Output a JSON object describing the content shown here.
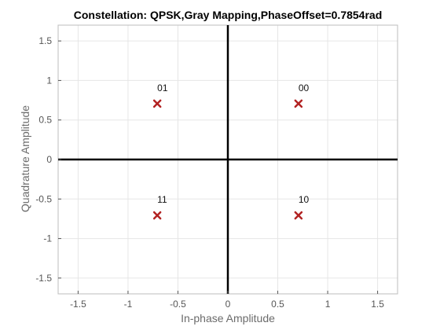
{
  "chart_data": {
    "type": "scatter",
    "title": "Constellation: QPSK,Gray Mapping,PhaseOffset=0.7854rad",
    "xlabel": "In-phase Amplitude",
    "ylabel": "Quadrature Amplitude",
    "xlim": [
      -1.7,
      1.7
    ],
    "ylim": [
      -1.7,
      1.7
    ],
    "xticks": [
      -1.5,
      -1,
      -0.5,
      0,
      0.5,
      1,
      1.5
    ],
    "yticks": [
      -1.5,
      -1,
      -0.5,
      0,
      0.5,
      1,
      1.5
    ],
    "xtick_labels": [
      "-1.5",
      "-1",
      "-0.5",
      "0",
      "0.5",
      "1",
      "1.5"
    ],
    "ytick_labels": [
      "-1.5",
      "-1",
      "-0.5",
      "0",
      "0.5",
      "1",
      "1.5"
    ],
    "grid": true,
    "marker": "x",
    "colors": {
      "marker": "#b22222",
      "axes": "#000000",
      "grid": "#e6e6e6",
      "frame": "#bdbdbd",
      "title": "#000000",
      "axis_label": "#6b6b6b",
      "tick_label": "#555555"
    },
    "points": [
      {
        "label": "01",
        "x": -0.7071,
        "y": 0.7071
      },
      {
        "label": "00",
        "x": 0.7071,
        "y": 0.7071
      },
      {
        "label": "11",
        "x": -0.7071,
        "y": -0.7071
      },
      {
        "label": "10",
        "x": 0.7071,
        "y": -0.7071
      }
    ]
  }
}
